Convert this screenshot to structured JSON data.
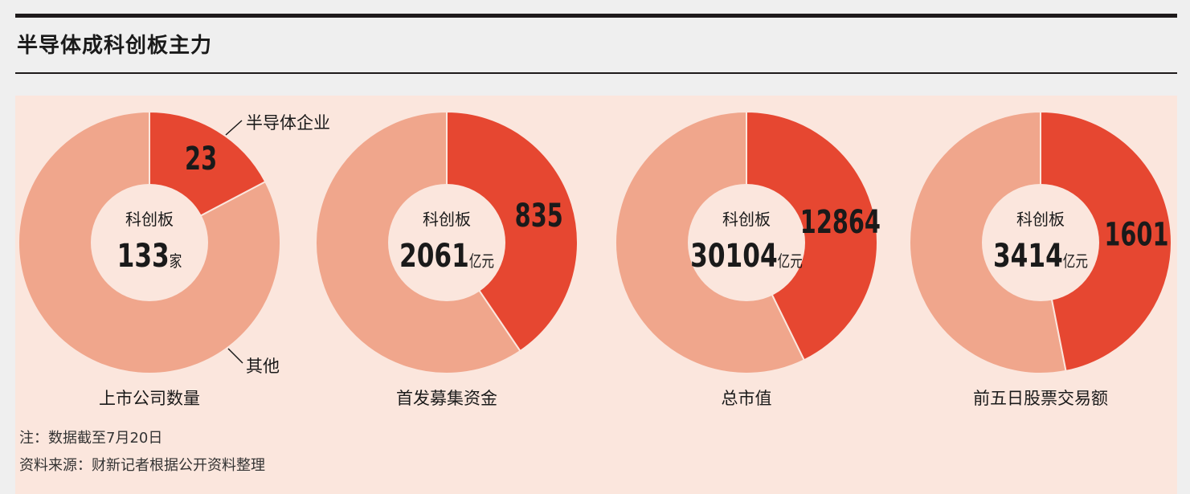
{
  "title": "半导体成科创板主力",
  "center_label": "科创板",
  "labels": {
    "highlight": "半导体企业",
    "other": "其他"
  },
  "notes": [
    "注：数据截至7月20日",
    "资料来源：财新记者根据公开资料整理"
  ],
  "colors": {
    "highlight": "#e64731",
    "other": "#f0a68c",
    "center": "#fbe6dd",
    "text": "#1a1a1a"
  },
  "chart_data": [
    {
      "type": "pie",
      "caption": "上市公司数量",
      "total": 133,
      "total_label": "133",
      "unit": "家",
      "highlight_value": 23,
      "highlight_label": "23"
    },
    {
      "type": "pie",
      "caption": "首发募集资金",
      "total": 2061,
      "total_label": "2061",
      "unit": "亿元",
      "highlight_value": 835,
      "highlight_label": "835"
    },
    {
      "type": "pie",
      "caption": "总市值",
      "total": 30104,
      "total_label": "30104",
      "unit": "亿元",
      "highlight_value": 12864,
      "highlight_label": "12864"
    },
    {
      "type": "pie",
      "caption": "前五日股票交易额",
      "total": 3414,
      "total_label": "3414",
      "unit": "亿元",
      "highlight_value": 1601,
      "highlight_label": "1601"
    }
  ]
}
